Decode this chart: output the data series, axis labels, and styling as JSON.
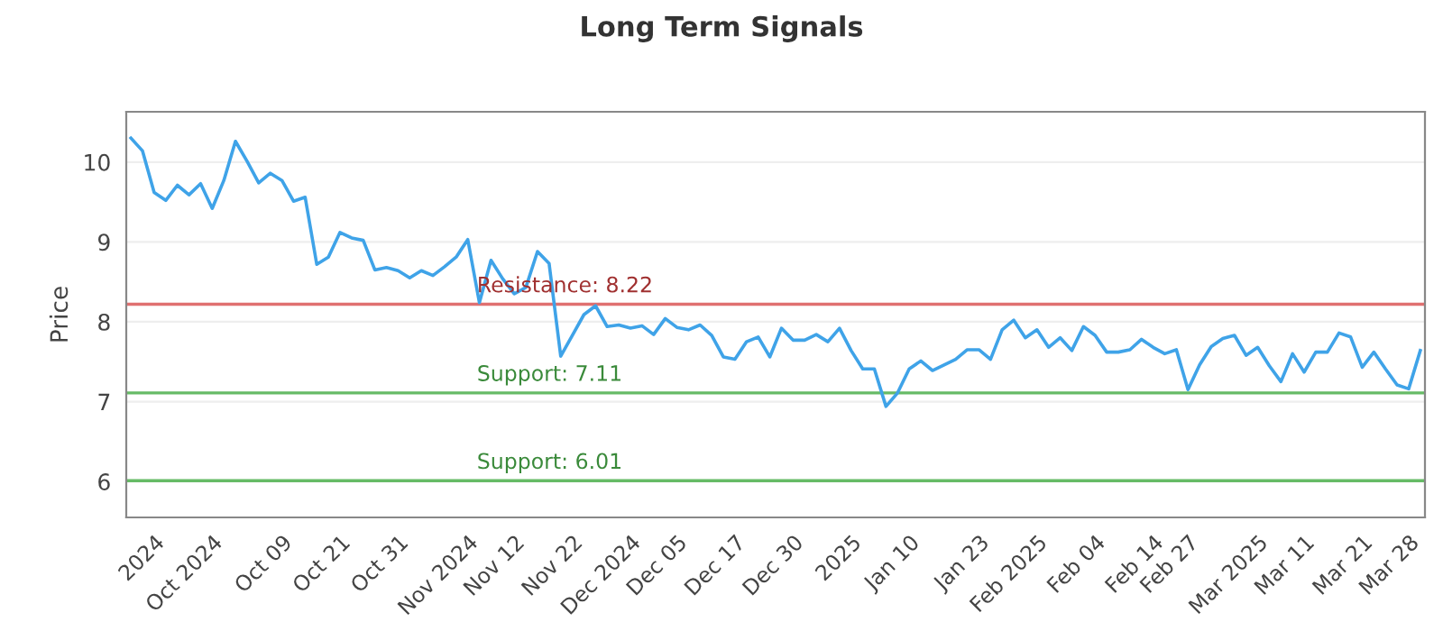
{
  "chart_data": {
    "type": "line",
    "title": "Long Term Signals",
    "ylabel": "Price",
    "ylim": [
      5.55,
      10.63
    ],
    "yticks": [
      6,
      7,
      8,
      9,
      10
    ],
    "categories": [
      null,
      null,
      "2024",
      null,
      null,
      null,
      null,
      "Oct 2024",
      null,
      null,
      null,
      null,
      null,
      "Oct 09",
      null,
      null,
      null,
      null,
      "Oct 21",
      null,
      null,
      null,
      null,
      "Oct 31",
      null,
      null,
      null,
      null,
      null,
      "Nov 2024",
      null,
      null,
      null,
      "Nov 12",
      null,
      null,
      null,
      null,
      "Nov 22",
      null,
      null,
      null,
      null,
      "Dec 2024",
      null,
      null,
      null,
      "Dec 05",
      null,
      null,
      null,
      null,
      "Dec 17",
      null,
      null,
      null,
      null,
      "Dec 30",
      null,
      null,
      null,
      null,
      "2025",
      null,
      null,
      null,
      null,
      "Jan 10",
      null,
      null,
      null,
      null,
      null,
      "Jan 23",
      null,
      null,
      null,
      null,
      "Feb 2025",
      null,
      null,
      null,
      null,
      "Feb 04",
      null,
      null,
      null,
      null,
      "Feb 14",
      null,
      null,
      "Feb 27",
      null,
      null,
      null,
      null,
      null,
      "Mar 2025",
      null,
      null,
      null,
      "Mar 11",
      null,
      null,
      null,
      null,
      "Mar 21",
      null,
      null,
      null,
      "Mar 28",
      null
    ],
    "grid": "y",
    "marker": "none",
    "line_style": "solid",
    "series": [
      {
        "color": "#3fa3e8",
        "values": [
          10.3,
          10.14,
          9.62,
          9.52,
          9.71,
          9.59,
          9.73,
          9.42,
          9.77,
          10.26,
          10.01,
          9.74,
          9.86,
          9.77,
          9.51,
          9.56,
          8.72,
          8.81,
          9.12,
          9.05,
          9.02,
          8.65,
          8.68,
          8.64,
          8.55,
          8.64,
          8.58,
          8.69,
          8.81,
          9.03,
          8.24,
          8.77,
          8.54,
          8.35,
          8.43,
          8.88,
          8.73,
          7.57,
          7.83,
          8.09,
          8.2,
          7.94,
          7.96,
          7.92,
          7.95,
          7.84,
          8.04,
          7.93,
          7.9,
          7.96,
          7.83,
          7.56,
          7.53,
          7.75,
          7.81,
          7.56,
          7.92,
          7.77,
          7.77,
          7.84,
          7.75,
          7.92,
          7.64,
          7.41,
          7.41,
          6.94,
          7.11,
          7.41,
          7.51,
          7.39,
          7.46,
          7.53,
          7.65,
          7.65,
          7.53,
          7.9,
          8.02,
          7.8,
          7.9,
          7.68,
          7.8,
          7.64,
          7.94,
          7.83,
          7.62,
          7.62,
          7.65,
          7.78,
          7.68,
          7.6,
          7.65,
          7.15,
          7.46,
          7.69,
          7.79,
          7.83,
          7.58,
          7.68,
          7.45,
          7.25,
          7.6,
          7.37,
          7.62,
          7.62,
          7.86,
          7.81,
          7.43,
          7.62,
          7.41,
          7.21,
          7.16,
          7.64
        ]
      }
    ],
    "ref_lines": [
      {
        "axis": "y",
        "value": 8.22,
        "label": "Resistance: 8.22",
        "color": "#e07070"
      },
      {
        "axis": "y",
        "value": 7.11,
        "label": "Support: 7.11",
        "color": "#66bb66"
      },
      {
        "axis": "y",
        "value": 6.01,
        "label": "Support: 6.01",
        "color": "#66bb66"
      }
    ]
  }
}
